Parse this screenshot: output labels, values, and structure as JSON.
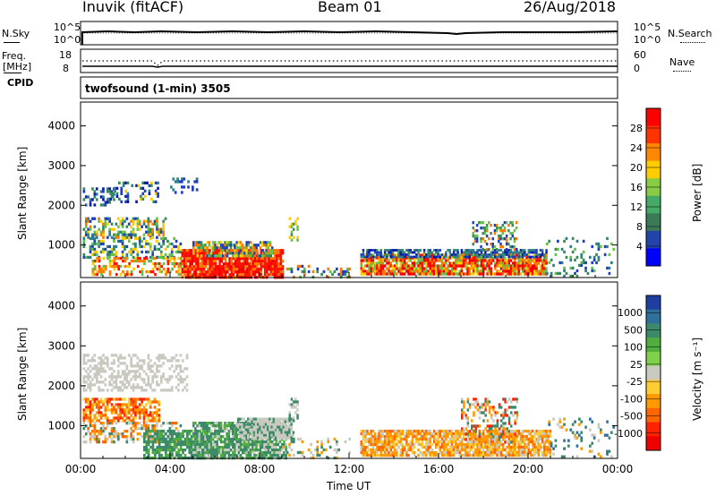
{
  "header": {
    "station": "Inuvik (fitACF)",
    "beam": "Beam 01",
    "date": "26/Aug/2018"
  },
  "top_panels": {
    "nsky_label": "N.Sky",
    "nsky_ticks": [
      "10^5",
      "10^0"
    ],
    "nsearch_label": "N.Search",
    "nsearch_ticks": [
      "10^5",
      "10^0"
    ],
    "freq_label_1": "Freq.",
    "freq_label_2": "[MHz]",
    "freq_ticks": [
      "18",
      "8"
    ],
    "nave_label": "Nave",
    "nave_ticks": [
      "60",
      "0"
    ],
    "cpid_label": "CPID",
    "cpid_text": "twofsound (1-min) 3505"
  },
  "chart_data": [
    {
      "type": "heatmap",
      "name": "power",
      "ylabel": "Slant Range [km]",
      "yticks": [
        1000,
        2000,
        3000,
        4000
      ],
      "ylim": [
        180,
        4600
      ],
      "colorbar_label": "Power [dB]",
      "colorbar_ticks": [
        "28",
        "24",
        "20",
        "16",
        "12",
        "8",
        "4"
      ],
      "colorbar_colors": [
        "#ff0000",
        "#ff3300",
        "#ff8800",
        "#ffcc00",
        "#88cc44",
        "#44aa66",
        "#3b7a57",
        "#2244aa",
        "#0000ff"
      ]
    },
    {
      "type": "heatmap",
      "name": "velocity",
      "xlabel": "Time UT",
      "ylabel": "Slant Range [km]",
      "yticks": [
        1000,
        2000,
        3000,
        4000
      ],
      "ylim": [
        180,
        4600
      ],
      "xticks": [
        "00:00",
        "04:00",
        "08:00",
        "12:00",
        "16:00",
        "20:00",
        "00:00"
      ],
      "colorbar_label": "Velocity [m s⁻¹]",
      "colorbar_ticks": [
        "1000",
        "500",
        "100",
        "25",
        "-25",
        "-100",
        "-500",
        "-1000"
      ],
      "colorbar_colors": [
        "#1f3fa0",
        "#2f6f9a",
        "#3d8a6a",
        "#4fae3e",
        "#7fd04a",
        "#c9c9c0",
        "#ffcc33",
        "#ff9900",
        "#ff6600",
        "#ff2200",
        "#ee0000"
      ]
    }
  ]
}
